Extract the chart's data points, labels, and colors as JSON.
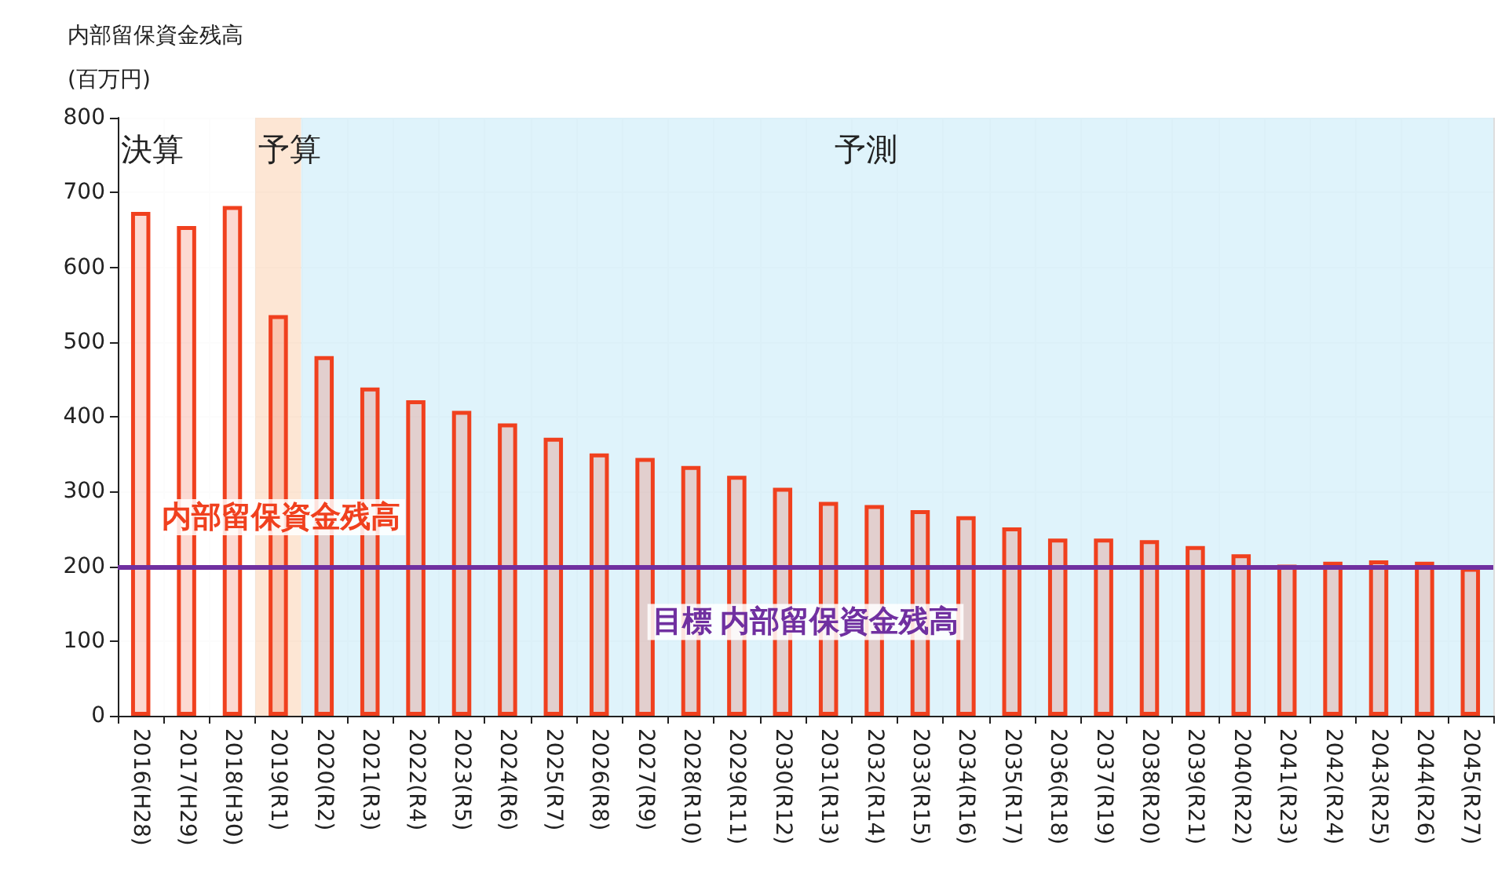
{
  "chart_data": {
    "type": "bar",
    "ylabel": "内部留保資金残高\n(百万円)",
    "categories": [
      "2016(H28)",
      "2017(H29)",
      "2018(H30)",
      "2019(R1)",
      "2020(R2)",
      "2021(R3)",
      "2022(R4)",
      "2023(R5)",
      "2024(R6)",
      "2025(R7)",
      "2026(R8)",
      "2027(R9)",
      "2028(R10)",
      "2029(R11)",
      "2030(R12)",
      "2031(R13)",
      "2032(R14)",
      "2033(R15)",
      "2034(R16)",
      "2035(R17)",
      "2036(R18)",
      "2037(R19)",
      "2038(R20)",
      "2039(R21)",
      "2040(R22)",
      "2041(R23)",
      "2042(R24)",
      "2043(R25)",
      "2044(R26)",
      "2045(R27)"
    ],
    "series": [
      {
        "name": "内部留保資金残高",
        "color": "#f0401e",
        "values": [
          674,
          655,
          682,
          536,
          481,
          439,
          422,
          408,
          391,
          372,
          351,
          345,
          334,
          321,
          305,
          286,
          282,
          275,
          267,
          252,
          237,
          237,
          235,
          227,
          216,
          202,
          206,
          208,
          206,
          198
        ]
      }
    ],
    "ylim": [
      0,
      800
    ],
    "yticks": [
      0,
      100,
      200,
      300,
      400,
      500,
      600,
      700,
      800
    ],
    "grid": true,
    "ref_lines": [
      {
        "axis": "y",
        "value": 200,
        "label": "目標 内部留保資金残高",
        "color": "#7030a0"
      }
    ],
    "bands": [
      {
        "axis": "x",
        "from": "2016(H28)",
        "to": "2018(H30)",
        "label": "決算",
        "color": "#ffffff"
      },
      {
        "axis": "x",
        "from": "2019(R1)",
        "to": "2019(R1)",
        "label": "予算",
        "color": "#fde3cf"
      },
      {
        "axis": "x",
        "from": "2020(R2)",
        "to": "2045(R27)",
        "label": "予測",
        "color": "#dcf2fb"
      }
    ]
  }
}
